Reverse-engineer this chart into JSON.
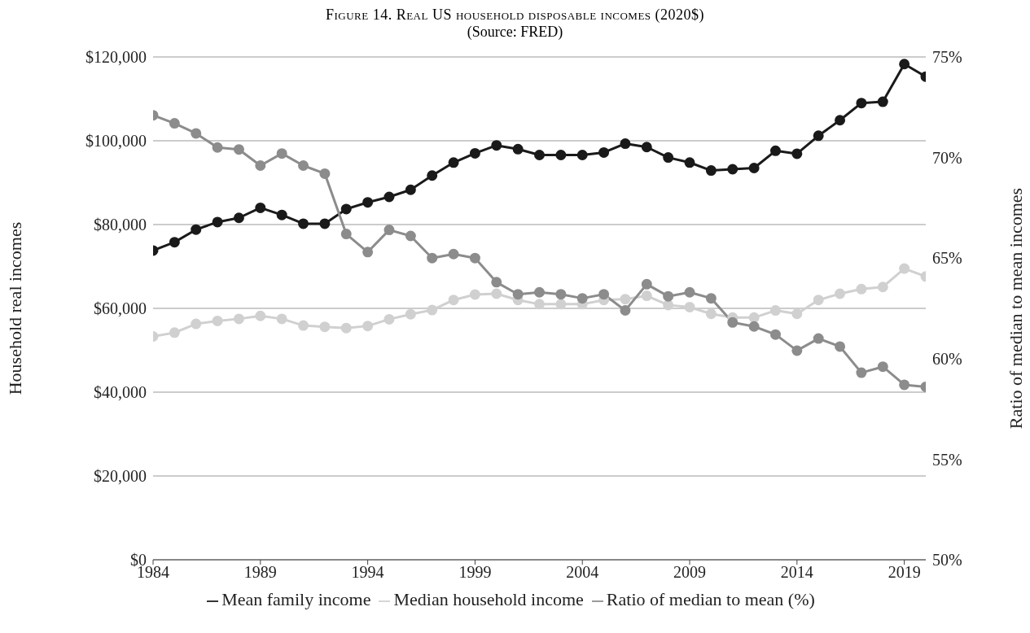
{
  "chart_data": {
    "type": "line",
    "title": "Figure 14. Real US household disposable incomes (2020$)",
    "subtitle": "(Source: FRED)",
    "ylabel": "Household real incomes",
    "y2label": "Ratio of median to mean incomes",
    "x": [
      1984,
      1985,
      1986,
      1987,
      1988,
      1989,
      1990,
      1991,
      1992,
      1993,
      1994,
      1995,
      1996,
      1997,
      1998,
      1999,
      2000,
      2001,
      2002,
      2003,
      2004,
      2005,
      2006,
      2007,
      2008,
      2009,
      2010,
      2011,
      2012,
      2013,
      2014,
      2015,
      2016,
      2017,
      2018,
      2019,
      2020
    ],
    "series": [
      {
        "name": "Median household income",
        "color": "#d0d0d0",
        "values": [
          53300,
          54200,
          56300,
          57000,
          57500,
          58200,
          57500,
          55900,
          55600,
          55300,
          55800,
          57400,
          58600,
          59600,
          62000,
          63300,
          63500,
          62000,
          61000,
          61000,
          61000,
          62000,
          62200,
          63000,
          60800,
          60300,
          58700,
          57800,
          57800,
          59500,
          58700,
          62000,
          63500,
          64600,
          65100,
          69500,
          67600
        ]
      },
      {
        "name": "Mean family income",
        "color": "#1a1a1a",
        "values": [
          73800,
          75800,
          78800,
          80600,
          81600,
          84000,
          82300,
          80200,
          80200,
          83700,
          85300,
          86600,
          88300,
          91700,
          94800,
          97000,
          98900,
          98000,
          96600,
          96600,
          96600,
          97200,
          99300,
          98500,
          96000,
          94800,
          92900,
          93200,
          93500,
          97600,
          96900,
          101200,
          104900,
          109000,
          109300,
          118300,
          115300
        ]
      },
      {
        "name": "Ratio of median to mean (%)",
        "color": "#8c8c8c",
        "axis": "y2",
        "values": [
          72.1,
          71.7,
          71.2,
          70.5,
          70.4,
          69.6,
          70.2,
          69.6,
          69.2,
          66.2,
          65.3,
          66.4,
          66.1,
          65.0,
          65.2,
          65.0,
          63.8,
          63.2,
          63.3,
          63.2,
          63.0,
          63.2,
          62.4,
          63.7,
          63.1,
          63.3,
          63.0,
          61.8,
          61.6,
          61.2,
          60.4,
          61.0,
          60.6,
          59.3,
          59.6,
          58.7,
          58.6
        ]
      }
    ],
    "xlim": [
      1984,
      2020
    ],
    "xticks": [
      1984,
      1989,
      1994,
      1999,
      2004,
      2009,
      2014,
      2019
    ],
    "ylim": [
      0,
      120000
    ],
    "yticks": [
      {
        "value": 0,
        "label": "$0"
      },
      {
        "value": 20000,
        "label": "$20,000"
      },
      {
        "value": 40000,
        "label": "$40,000"
      },
      {
        "value": 60000,
        "label": "$60,000"
      },
      {
        "value": 80000,
        "label": "$80,000"
      },
      {
        "value": 100000,
        "label": "$100,000"
      },
      {
        "value": 120000,
        "label": "$120,000"
      }
    ],
    "y2lim": [
      50,
      75
    ],
    "y2ticks": [
      {
        "value": 50,
        "label": "50%"
      },
      {
        "value": 55,
        "label": "55%"
      },
      {
        "value": 60,
        "label": "60%"
      },
      {
        "value": 65,
        "label": "65%"
      },
      {
        "value": 70,
        "label": "70%"
      },
      {
        "value": 75,
        "label": "75%"
      }
    ],
    "grid": "y",
    "legend": "bottom",
    "marker": "circle",
    "line_style": "solid"
  }
}
